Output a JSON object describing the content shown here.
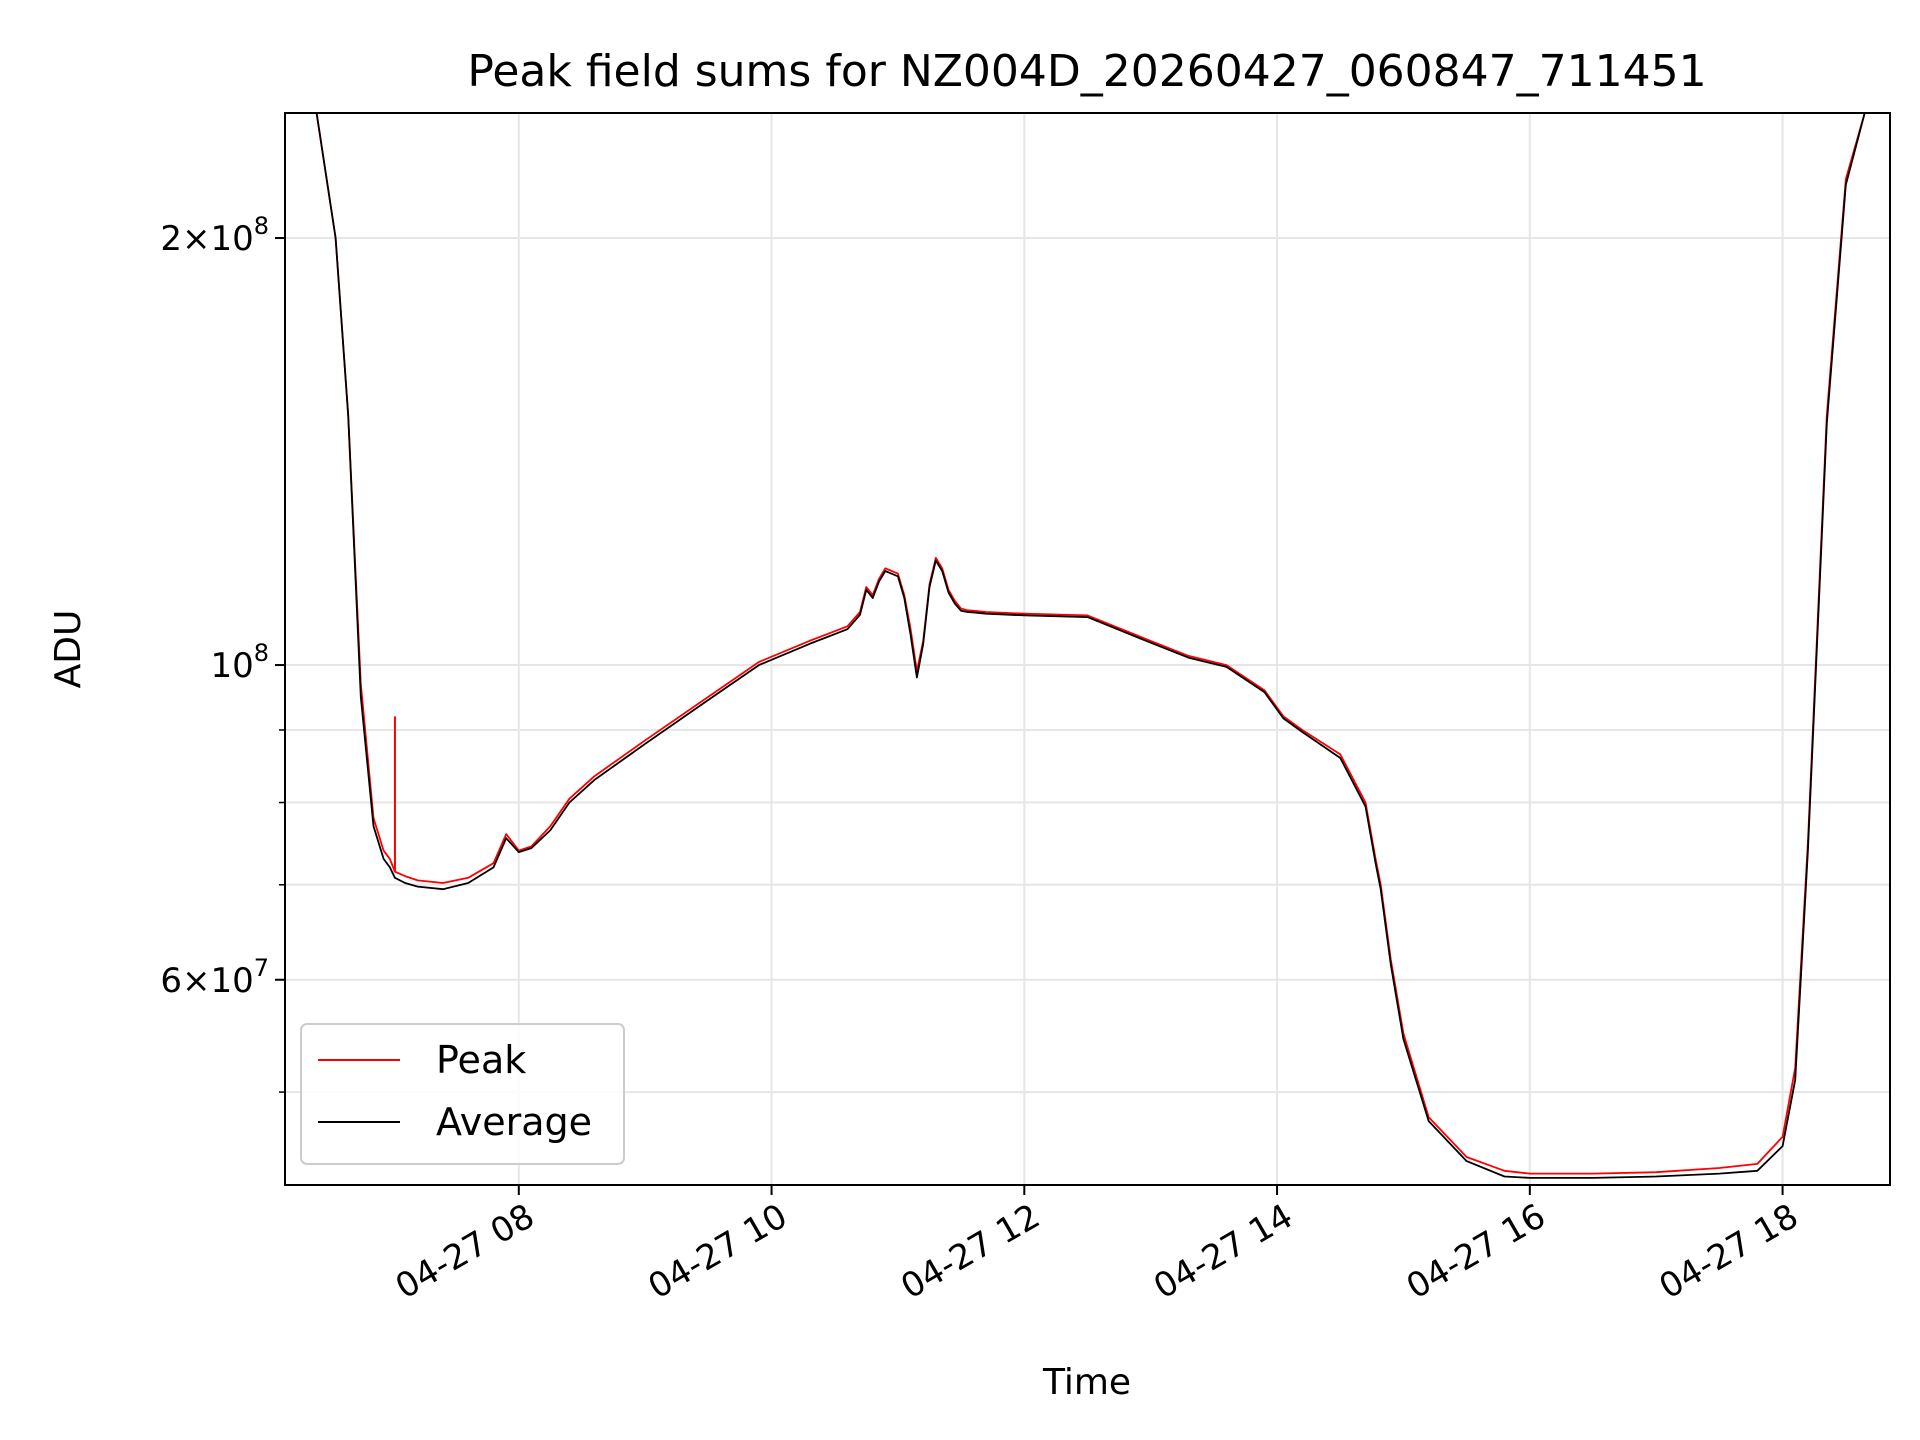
{
  "chart_data": {
    "type": "line",
    "title": "Peak field sums for NZ004D_20260427_060847_711451",
    "xlabel": "Time",
    "ylabel": "ADU",
    "yscale": "log",
    "ylim": [
      43000000,
      245000000
    ],
    "xlim": [
      6.15,
      18.85
    ],
    "grid": true,
    "legend_position": "lower-left",
    "x_ticks": [
      {
        "value": 8,
        "label": "04-27 08"
      },
      {
        "value": 10,
        "label": "04-27 10"
      },
      {
        "value": 12,
        "label": "04-27 12"
      },
      {
        "value": 14,
        "label": "04-27 14"
      },
      {
        "value": 16,
        "label": "04-27 16"
      },
      {
        "value": 18,
        "label": "04-27 18"
      }
    ],
    "y_ticks": [
      {
        "value": 200000000,
        "mantissa": "2×10",
        "exp": "8"
      },
      {
        "value": 100000000,
        "mantissa": "10",
        "exp": "8"
      },
      {
        "value": 60000000,
        "mantissa": "6×10",
        "exp": "7"
      }
    ],
    "y_minor_ticks": [
      50000000,
      70000000,
      80000000,
      90000000
    ],
    "series": [
      {
        "name": "Peak",
        "color": "#ff0000",
        "x": [
          6.15,
          6.4,
          6.55,
          6.65,
          6.75,
          6.85,
          6.93,
          6.98,
          7.02,
          7.1,
          7.2,
          7.4,
          7.6,
          7.8,
          7.9,
          8.0,
          8.1,
          8.25,
          8.4,
          8.6,
          9.0,
          9.5,
          9.9,
          10.3,
          10.6,
          10.7,
          10.75,
          10.8,
          10.85,
          10.9,
          11.0,
          11.05,
          11.1,
          11.15,
          11.2,
          11.25,
          11.3,
          11.35,
          11.4,
          11.45,
          11.5,
          11.55,
          11.6,
          11.7,
          12.0,
          12.5,
          13.0,
          13.3,
          13.6,
          13.9,
          14.05,
          14.2,
          14.5,
          14.7,
          14.78,
          14.82,
          14.9,
          15.0,
          15.2,
          15.5,
          15.8,
          16.0,
          16.5,
          17.0,
          17.5,
          17.8,
          18.0,
          18.1,
          18.2,
          18.35,
          18.5,
          18.65,
          18.85
        ],
        "values": [
          245000000,
          245000000,
          200000000,
          150000000,
          97000000,
          78000000,
          74000000,
          73000000,
          71500000,
          71000000,
          70500000,
          70200000,
          70800000,
          72500000,
          76000000,
          74000000,
          74500000,
          77000000,
          80500000,
          83500000,
          88500000,
          95000000,
          100500000,
          104000000,
          106500000,
          109000000,
          113500000,
          112000000,
          115000000,
          117000000,
          116000000,
          112000000,
          106000000,
          99000000,
          104000000,
          114000000,
          119000000,
          117000000,
          113000000,
          111000000,
          109600000,
          109300000,
          109200000,
          109000000,
          108700000,
          108400000,
          104000000,
          101500000,
          100000000,
          96000000,
          92000000,
          90000000,
          86500000,
          80000000,
          73000000,
          70000000,
          62000000,
          55000000,
          48000000,
          45000000,
          44000000,
          43800000,
          43800000,
          43900000,
          44200000,
          44500000,
          46500000,
          52000000,
          75000000,
          150000000,
          220000000,
          245000000,
          245000000
        ]
      },
      {
        "name": "Average",
        "color": "#000000",
        "x": [
          6.15,
          6.4,
          6.55,
          6.65,
          6.75,
          6.85,
          6.93,
          6.98,
          7.02,
          7.1,
          7.2,
          7.4,
          7.6,
          7.8,
          7.9,
          8.0,
          8.1,
          8.25,
          8.4,
          8.6,
          9.0,
          9.5,
          9.9,
          10.3,
          10.6,
          10.7,
          10.75,
          10.8,
          10.85,
          10.9,
          11.0,
          11.05,
          11.1,
          11.15,
          11.2,
          11.25,
          11.3,
          11.35,
          11.4,
          11.45,
          11.5,
          11.55,
          11.6,
          11.7,
          12.0,
          12.5,
          13.0,
          13.3,
          13.6,
          13.9,
          14.05,
          14.2,
          14.5,
          14.7,
          14.78,
          14.82,
          14.9,
          15.0,
          15.2,
          15.5,
          15.8,
          16.0,
          16.5,
          17.0,
          17.5,
          17.8,
          18.0,
          18.1,
          18.2,
          18.35,
          18.5,
          18.65,
          18.85
        ],
        "values": [
          245000000,
          245000000,
          200000000,
          150000000,
          95000000,
          77000000,
          73000000,
          72000000,
          70800000,
          70200000,
          69800000,
          69500000,
          70200000,
          72000000,
          75500000,
          73800000,
          74300000,
          76500000,
          80000000,
          83000000,
          88000000,
          94500000,
          100000000,
          103500000,
          106000000,
          108500000,
          113000000,
          111500000,
          114500000,
          116500000,
          115500000,
          111500000,
          105000000,
          98000000,
          103500000,
          113500000,
          118500000,
          116500000,
          112500000,
          110500000,
          109200000,
          109000000,
          108900000,
          108700000,
          108400000,
          108100000,
          103700000,
          101200000,
          99700000,
          95700000,
          91700000,
          89700000,
          86000000,
          79500000,
          72500000,
          69500000,
          61500000,
          54500000,
          47700000,
          44700000,
          43600000,
          43500000,
          43500000,
          43600000,
          43800000,
          44000000,
          45800000,
          51000000,
          74000000,
          148000000,
          218000000,
          245000000,
          245000000
        ]
      }
    ]
  }
}
